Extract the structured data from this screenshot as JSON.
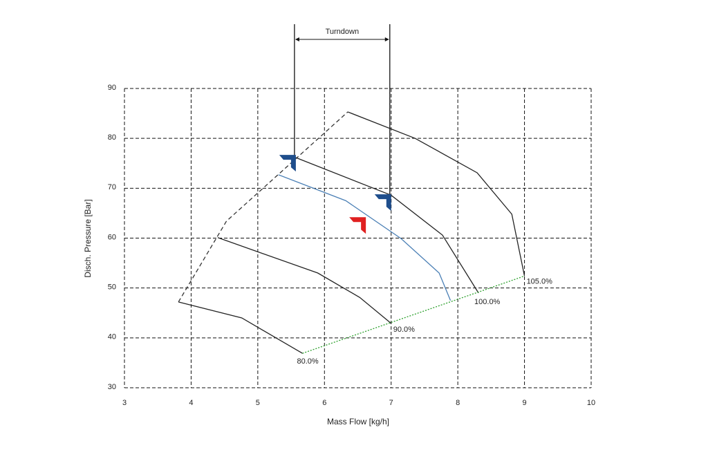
{
  "chart_data": {
    "type": "line",
    "xlabel": "Mass Flow  [kg/h]",
    "ylabel": "Disch. Pressure [Bar]",
    "xlim": [
      3,
      10
    ],
    "xticks": [
      3,
      4,
      5,
      6,
      7,
      8,
      9,
      10
    ],
    "ylim": [
      30,
      90
    ],
    "yticks": [
      30,
      40,
      50,
      60,
      70,
      80,
      90
    ],
    "grid": true,
    "series": [
      {
        "label": "80.0%",
        "color": "#222222",
        "x": [
          3.81,
          4.76,
          5.67
        ],
        "values": [
          47.2,
          44.0,
          36.9
        ]
      },
      {
        "label": "90.0%",
        "color": "#222222",
        "x": [
          4.4,
          5.9,
          6.53,
          7.0
        ],
        "values": [
          60.1,
          53.0,
          48.1,
          42.9
        ]
      },
      {
        "label": "100.0%",
        "color": "#222222",
        "x": [
          5.54,
          7.0,
          7.77,
          8.31
        ],
        "values": [
          76.3,
          68.6,
          60.6,
          49.0
        ]
      },
      {
        "label": "105.0%",
        "color": "#222222",
        "x": [
          6.35,
          7.36,
          8.29,
          8.81,
          9.0
        ],
        "values": [
          85.3,
          80.0,
          73.1,
          64.8,
          52.4
        ]
      },
      {
        "color": "#4a7fb5",
        "x": [
          5.31,
          6.32,
          7.15,
          7.72,
          7.89
        ],
        "values": [
          72.7,
          67.5,
          59.9,
          53.0,
          47.5
        ]
      },
      {
        "color": "#333333",
        "dash": "dashed",
        "x": [
          3.81,
          4.53,
          6.35
        ],
        "values": [
          47.2,
          63.4,
          85.3
        ]
      },
      {
        "color": "#2ca02c",
        "dash": "dotted",
        "x": [
          5.67,
          9.0
        ],
        "values": [
          36.9,
          52.4
        ]
      }
    ],
    "markers": [
      {
        "x": 5.55,
        "y": 75.3,
        "color": "#1f4e8c"
      },
      {
        "x": 6.98,
        "y": 67.4,
        "color": "#1f4e8c"
      },
      {
        "x": 6.6,
        "y": 62.8,
        "color": "#e02020"
      }
    ],
    "turndown": {
      "text": "Turndown",
      "from_marker": 0,
      "to_marker": 1
    }
  }
}
